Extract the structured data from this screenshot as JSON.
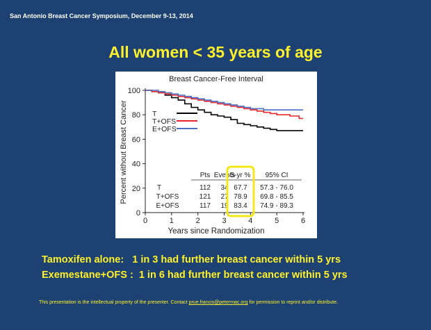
{
  "conference": "San Antonio Breast Cancer Symposium, December 9-13, 2014",
  "heading": "All women < 35 years of age",
  "summary": [
    "Tamoxifen alone:   1 in 3 had further breast cancer within 5 yrs",
    "Exemestane+OFS :  1 in 6 had further breast cancer within 5 yrs"
  ],
  "footer": {
    "before": "This presentation is the intellectual property of the presenter. Contact ",
    "email": "prue.francis@petermac.org",
    "after": " for permission to reprint and/or distribute."
  },
  "colors": {
    "background": "#1c4172",
    "heading": "#fff12a",
    "T": "#000000",
    "T+OFS": "#e8262b",
    "E+OFS": "#4a6fc4",
    "highlight_box": "#f3e817"
  },
  "chart_data": {
    "type": "line",
    "title": "Breast Cancer-Free Interval",
    "xlabel": "Years since Randomization",
    "ylabel": "Percent without Breast Cancer",
    "xlim": [
      0,
      6
    ],
    "ylim": [
      0,
      100
    ],
    "xticks": [
      "0",
      "1",
      "2",
      "3",
      "4",
      "5",
      "6"
    ],
    "yticks": [
      "0",
      "20",
      "40",
      "60",
      "80",
      "100"
    ],
    "legend_placement": "upper-left",
    "series": [
      {
        "name": "T",
        "x": [
          0,
          0.25,
          0.5,
          0.75,
          1.0,
          1.25,
          1.5,
          1.75,
          2.0,
          2.25,
          2.5,
          2.75,
          3.0,
          3.25,
          3.5,
          3.75,
          4.0,
          4.25,
          4.5,
          4.75,
          5.0,
          5.5,
          6.0
        ],
        "y": [
          100,
          99,
          98,
          96,
          94,
          92,
          89,
          86,
          84,
          82,
          80,
          79,
          78,
          76,
          73,
          72,
          71,
          70,
          69,
          68,
          67,
          67,
          67
        ]
      },
      {
        "name": "T+OFS",
        "x": [
          0,
          0.25,
          0.5,
          0.75,
          1.0,
          1.25,
          1.5,
          1.75,
          2.0,
          2.25,
          2.5,
          2.75,
          3.0,
          3.25,
          3.5,
          3.75,
          4.0,
          4.25,
          4.5,
          4.75,
          5.0,
          5.5,
          5.85,
          6.0
        ],
        "y": [
          100,
          99,
          98,
          97,
          96,
          95,
          94,
          93,
          92,
          91,
          90,
          89,
          88,
          87,
          86,
          85,
          84,
          83,
          82,
          81,
          80,
          79,
          77,
          77
        ]
      },
      {
        "name": "E+OFS",
        "x": [
          0,
          0.25,
          0.5,
          0.75,
          1.0,
          1.25,
          1.5,
          1.75,
          2.0,
          2.25,
          2.5,
          2.75,
          3.0,
          3.25,
          3.5,
          3.75,
          4.0,
          4.5,
          5.0,
          5.5,
          6.0
        ],
        "y": [
          100,
          100,
          99,
          98,
          97,
          96,
          95,
          94,
          93,
          92,
          91,
          90,
          89,
          88,
          87,
          86,
          85,
          84,
          84,
          84,
          84
        ]
      }
    ],
    "table": {
      "headers": [
        "",
        "Pts",
        "Events",
        "5-yr %",
        "95% CI"
      ],
      "rows": [
        [
          "T",
          "112",
          "34",
          "67.7",
          "57.3 - 76.0"
        ],
        [
          "T+OFS",
          "121",
          "27",
          "78.9",
          "69.8 - 85.5"
        ],
        [
          "E+OFS",
          "117",
          "19",
          "83.4",
          "74.9 - 89.3"
        ]
      ]
    }
  }
}
